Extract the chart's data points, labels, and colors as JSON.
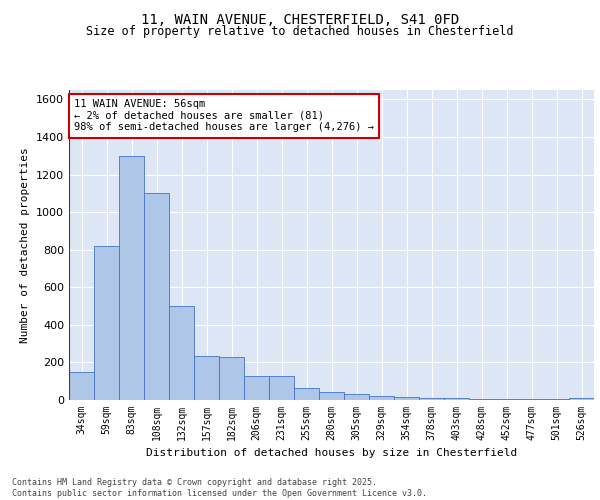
{
  "title_line1": "11, WAIN AVENUE, CHESTERFIELD, S41 0FD",
  "title_line2": "Size of property relative to detached houses in Chesterfield",
  "xlabel": "Distribution of detached houses by size in Chesterfield",
  "ylabel": "Number of detached properties",
  "categories": [
    "34sqm",
    "59sqm",
    "83sqm",
    "108sqm",
    "132sqm",
    "157sqm",
    "182sqm",
    "206sqm",
    "231sqm",
    "255sqm",
    "280sqm",
    "305sqm",
    "329sqm",
    "354sqm",
    "378sqm",
    "403sqm",
    "428sqm",
    "452sqm",
    "477sqm",
    "501sqm",
    "526sqm"
  ],
  "values": [
    150,
    820,
    1300,
    1100,
    500,
    235,
    230,
    130,
    130,
    65,
    40,
    30,
    20,
    15,
    12,
    8,
    5,
    5,
    5,
    5,
    12
  ],
  "bar_color": "#aec6e8",
  "bar_edge_color": "#4472c4",
  "background_color": "#dce6f5",
  "grid_color": "#ffffff",
  "fig_background": "#ffffff",
  "ylim": [
    0,
    1650
  ],
  "yticks": [
    0,
    200,
    400,
    600,
    800,
    1000,
    1200,
    1400,
    1600
  ],
  "vline_color": "#cc0000",
  "annotation_text": "11 WAIN AVENUE: 56sqm\n← 2% of detached houses are smaller (81)\n98% of semi-detached houses are larger (4,276) →",
  "annotation_box_color": "#cc0000",
  "footer_text": "Contains HM Land Registry data © Crown copyright and database right 2025.\nContains public sector information licensed under the Open Government Licence v3.0."
}
